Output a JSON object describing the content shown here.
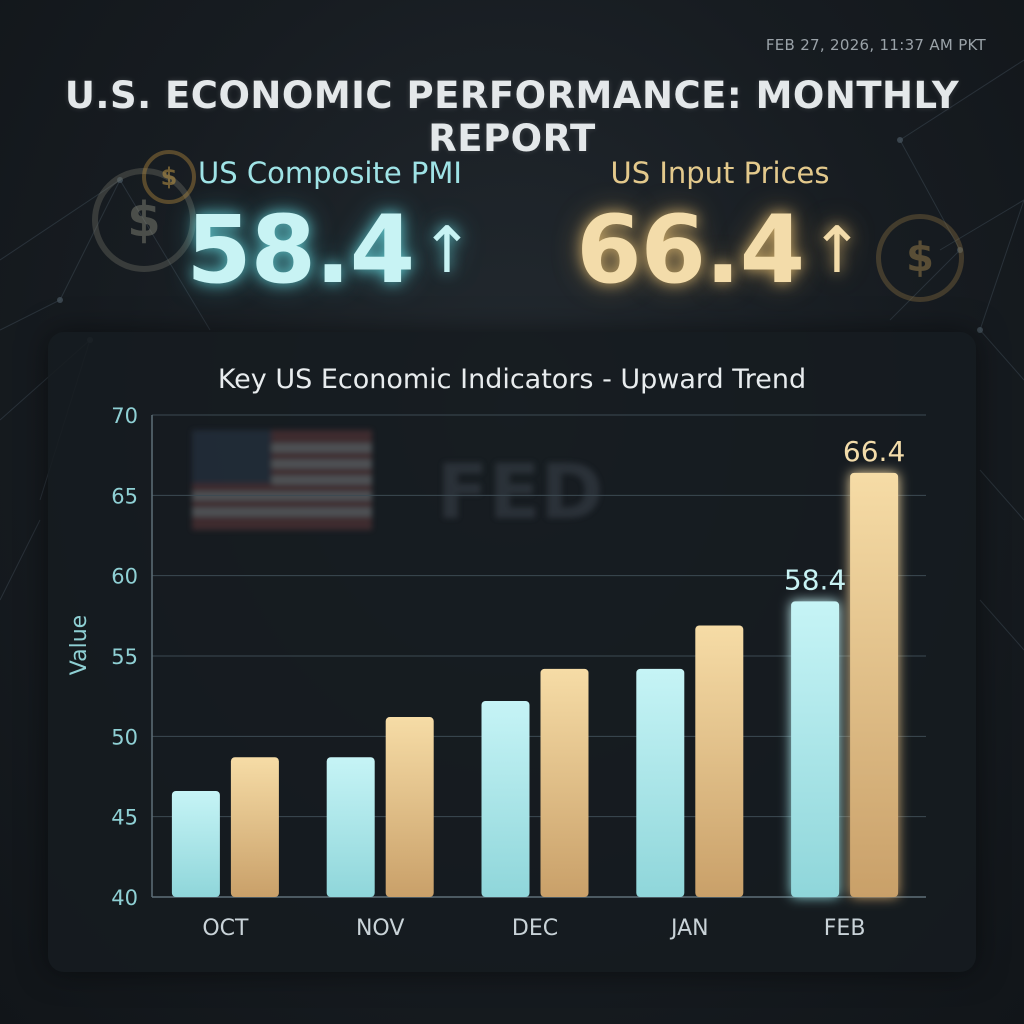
{
  "header": {
    "timestamp": "FEB 27, 2026, 11:37 AM PKT",
    "title": "U.S. ECONOMIC PERFORMANCE: MONTHLY REPORT"
  },
  "metrics": {
    "pmi": {
      "label": "US Composite PMI",
      "value": "58.4",
      "arrow": "↑",
      "color": "#9fe3e6"
    },
    "input_prices": {
      "label": "US Input Prices",
      "value": "66.4",
      "arrow": "↑",
      "color": "#e3c98c"
    }
  },
  "decor": {
    "coin_icon": "$",
    "watermark_text": "FED",
    "flag_icon": "us-flag-icon"
  },
  "chart_data": {
    "type": "bar",
    "title": "Key US Economic Indicators - Upward Trend",
    "xlabel": "",
    "ylabel": "Value",
    "categories": [
      "OCT",
      "NOV",
      "DEC",
      "JAN",
      "FEB"
    ],
    "ylim": [
      40,
      70
    ],
    "yticks": [
      40,
      45,
      50,
      55,
      60,
      65,
      70
    ],
    "grid": true,
    "legend": "none",
    "series": [
      {
        "values": [
          46.6,
          48.7,
          52.2,
          54.2,
          58.4
        ],
        "color": "#a6e8ec"
      },
      {
        "values": [
          48.7,
          51.2,
          54.2,
          56.9,
          66.4
        ],
        "color": "#e9c88a"
      }
    ],
    "data_labels": [
      {
        "series": 0,
        "category": "FEB",
        "text": "58.4"
      },
      {
        "series": 1,
        "category": "FEB",
        "text": "66.4"
      }
    ]
  }
}
